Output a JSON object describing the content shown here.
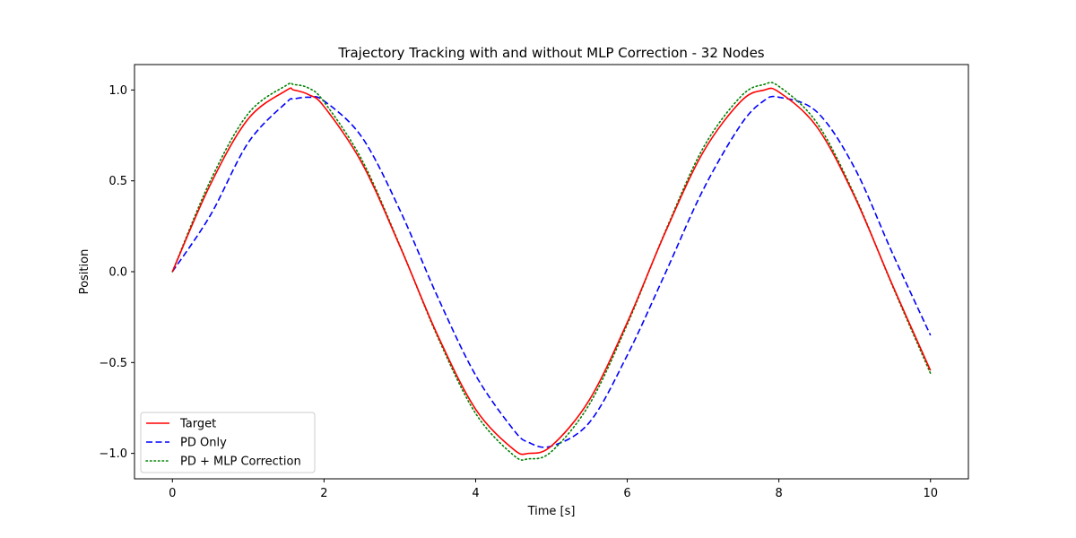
{
  "chart_data": {
    "type": "line",
    "title": "Trajectory Tracking with and without MLP Correction - 32 Nodes",
    "xlabel": "Time [s]",
    "ylabel": "Position",
    "xlim": [
      -0.5,
      10.5
    ],
    "ylim": [
      -1.14,
      1.14
    ],
    "xticks": [
      0,
      2,
      4,
      6,
      8,
      10
    ],
    "xtick_labels": [
      "0",
      "2",
      "4",
      "6",
      "8",
      "10"
    ],
    "yticks": [
      -1.0,
      -0.5,
      0.0,
      0.5,
      1.0
    ],
    "ytick_labels": [
      "−1.0",
      "−0.5",
      "0.0",
      "0.5",
      "1.0"
    ],
    "grid": false,
    "legend_position": "lower-left",
    "x": [
      0.0,
      0.5,
      1.0,
      1.5,
      1.6,
      1.8,
      2.0,
      2.5,
      3.0,
      3.5,
      4.0,
      4.5,
      4.7,
      5.0,
      5.5,
      6.0,
      6.5,
      7.0,
      7.5,
      7.8,
      8.0,
      8.5,
      9.0,
      9.5,
      10.0
    ],
    "series": [
      {
        "name": "Target",
        "color": "#ff0000",
        "linestyle": "solid",
        "values": [
          0.0,
          0.479,
          0.841,
          0.997,
          1.0,
          0.974,
          0.909,
          0.598,
          0.141,
          -0.351,
          -0.757,
          -0.978,
          -1.0,
          -0.959,
          -0.706,
          -0.279,
          0.215,
          0.657,
          0.938,
          0.999,
          0.989,
          0.798,
          0.412,
          -0.075,
          -0.544
        ]
      },
      {
        "name": "PD Only",
        "color": "#0000ff",
        "linestyle": "dashed",
        "values": [
          0.0,
          0.31,
          0.71,
          0.93,
          0.95,
          0.96,
          0.94,
          0.74,
          0.34,
          -0.14,
          -0.57,
          -0.87,
          -0.94,
          -0.96,
          -0.83,
          -0.46,
          -0.01,
          0.45,
          0.81,
          0.94,
          0.96,
          0.88,
          0.57,
          0.1,
          -0.35
        ]
      },
      {
        "name": "PD + MLP Correction",
        "color": "#008000",
        "linestyle": "dotted",
        "values": [
          0.0,
          0.5,
          0.87,
          1.025,
          1.03,
          1.01,
          0.935,
          0.615,
          0.145,
          -0.36,
          -0.78,
          -1.01,
          -1.03,
          -0.99,
          -0.73,
          -0.29,
          0.22,
          0.68,
          0.965,
          1.03,
          1.02,
          0.82,
          0.42,
          -0.08,
          -0.56
        ]
      }
    ]
  }
}
